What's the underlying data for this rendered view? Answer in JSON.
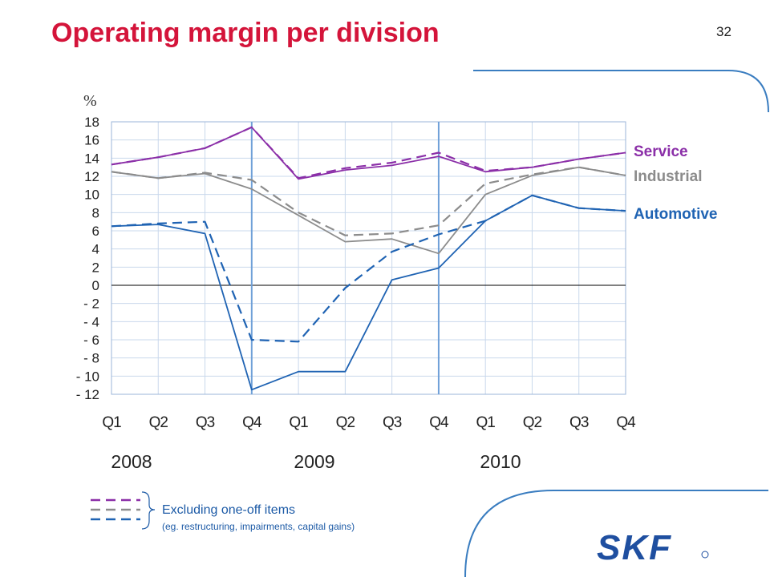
{
  "slide": {
    "title": "Operating margin per division",
    "page_number": "32",
    "note_main": "Excluding one-off items",
    "note_sub": "(eg. restructuring, impairments, capital gains)",
    "logo_text": "SKF"
  },
  "chart_data": {
    "type": "line",
    "ylabel": "%",
    "ylim": [
      -12,
      18
    ],
    "yticks": [
      "18",
      "16",
      "14",
      "12",
      "10",
      "8",
      "6",
      "4",
      "2",
      "0",
      "- 2",
      "- 4",
      "- 6",
      "- 8",
      "- 10",
      "- 12"
    ],
    "ytick_values": [
      18,
      16,
      14,
      12,
      10,
      8,
      6,
      4,
      2,
      0,
      -2,
      -4,
      -6,
      -8,
      -10,
      -12
    ],
    "categories": [
      "Q1",
      "Q2",
      "Q3",
      "Q4",
      "Q1",
      "Q2",
      "Q3",
      "Q4",
      "Q1",
      "Q2",
      "Q3",
      "Q4"
    ],
    "years": [
      "2008",
      "2009",
      "2010"
    ],
    "colors": {
      "service": "#8b2fa8",
      "industrial": "#8c8c8c",
      "automotive": "#1f63b3"
    },
    "series": [
      {
        "name": "Service",
        "key": "service",
        "style": "solid",
        "values": [
          13.3,
          14.1,
          15.1,
          17.4,
          11.7,
          12.7,
          13.2,
          14.2,
          12.5,
          13.0,
          13.9,
          14.6
        ]
      },
      {
        "name": "",
        "key": "service",
        "style": "dashed",
        "values": [
          13.3,
          14.1,
          15.1,
          17.4,
          11.8,
          12.9,
          13.5,
          14.6,
          12.6,
          13.0,
          13.9,
          14.6
        ]
      },
      {
        "name": "Industrial",
        "key": "industrial",
        "style": "solid",
        "values": [
          12.5,
          11.8,
          12.3,
          10.6,
          7.7,
          4.8,
          5.1,
          3.5,
          10.0,
          12.1,
          13.0,
          12.1
        ]
      },
      {
        "name": "",
        "key": "industrial",
        "style": "dashed",
        "values": [
          12.5,
          11.8,
          12.4,
          11.6,
          8.0,
          5.5,
          5.7,
          6.6,
          11.2,
          12.2,
          13.0,
          12.1
        ]
      },
      {
        "name": "Automotive",
        "key": "automotive",
        "style": "solid",
        "values": [
          6.5,
          6.7,
          5.7,
          -11.5,
          -9.5,
          -9.5,
          0.6,
          1.9,
          7.1,
          9.9,
          8.5,
          8.2
        ]
      },
      {
        "name": "",
        "key": "automotive",
        "style": "dashed",
        "values": [
          6.5,
          6.8,
          7.0,
          -6.0,
          -6.2,
          -0.3,
          3.7,
          5.6,
          7.1,
          9.9,
          8.5,
          8.2
        ]
      }
    ],
    "legend": [
      {
        "label": "Service",
        "key": "service"
      },
      {
        "label": "Industrial",
        "key": "industrial"
      },
      {
        "label": "Automotive",
        "key": "automotive"
      }
    ],
    "grid": true
  }
}
